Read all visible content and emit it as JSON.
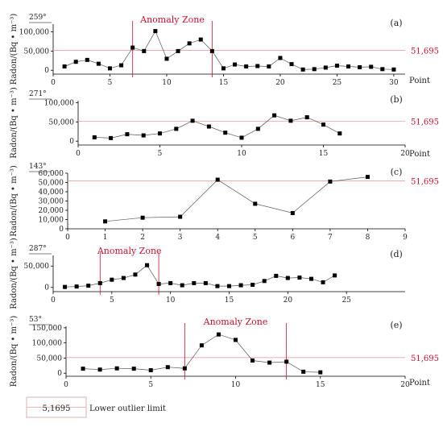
{
  "legend": {
    "value": "5,1695",
    "label": "Lower outlier limit"
  },
  "colors": {
    "threshold": "#e8a0a0",
    "zone": "#c8102e",
    "series": "#000000",
    "line": "#555555"
  },
  "chart_data": [
    {
      "type": "line",
      "panel": "(a)",
      "angle": "259°",
      "ylabel": "Radon/(Bq • m⁻³)",
      "xlabel": "Point",
      "xlim": [
        0,
        31
      ],
      "ylim": [
        -10000,
        120000
      ],
      "xticks": [
        0,
        5,
        10,
        15,
        20,
        25,
        30
      ],
      "yticks": [
        0,
        50000,
        100000
      ],
      "ytick_labels": [
        "0",
        "50,000",
        "100,000"
      ],
      "threshold": 51695,
      "threshold_label": "51,695",
      "anomaly_zone": {
        "label": "Anomaly Zone",
        "x0": 7,
        "x1": 14
      },
      "x": [
        1,
        2,
        3,
        4,
        5,
        6,
        7,
        8,
        9,
        10,
        11,
        12,
        13,
        14,
        15,
        16,
        17,
        18,
        19,
        20,
        21,
        22,
        23,
        24,
        25,
        26,
        27,
        28,
        29,
        30
      ],
      "values": [
        10000,
        22000,
        27000,
        17000,
        5000,
        13000,
        59000,
        50000,
        102000,
        30000,
        50000,
        70000,
        80000,
        50000,
        5000,
        15000,
        10000,
        11000,
        10000,
        32000,
        16000,
        2000,
        3000,
        7000,
        12000,
        10000,
        8000,
        9000,
        3000,
        2000
      ]
    },
    {
      "type": "line",
      "panel": "(b)",
      "angle": "271°",
      "ylabel": "Radon/(Bq • m⁻³)",
      "xlabel": "Point",
      "xlim": [
        0,
        20
      ],
      "ylim": [
        -10000,
        105000
      ],
      "xticks": [
        0,
        5,
        10,
        15,
        20
      ],
      "yticks": [
        0,
        50000,
        100000
      ],
      "ytick_labels": [
        "0",
        "50,000",
        "100,000"
      ],
      "threshold": 51695,
      "threshold_label": "51,695",
      "x": [
        1,
        2,
        3,
        4,
        5,
        6,
        7,
        8,
        9,
        10,
        11,
        12,
        13,
        14,
        15,
        16
      ],
      "values": [
        10000,
        8000,
        18000,
        15000,
        20000,
        32000,
        53000,
        38000,
        22000,
        9000,
        32000,
        67000,
        53000,
        62000,
        43000,
        20000
      ]
    },
    {
      "type": "line",
      "panel": "(c)",
      "angle": "143°",
      "ylabel": "Radon/(Bq • m⁻³)",
      "xlabel": "",
      "xlim": [
        0,
        9
      ],
      "ylim": [
        0,
        60000
      ],
      "xticks": [
        0,
        1,
        2,
        3,
        4,
        5,
        6,
        7,
        8,
        9
      ],
      "yticks": [
        0,
        10000,
        20000,
        30000,
        40000,
        50000,
        60000
      ],
      "ytick_labels": [
        "0",
        "10,000",
        "20,000",
        "30,000",
        "40,000",
        "50,000",
        "60,000"
      ],
      "threshold": 51695,
      "threshold_label": "51,695",
      "x": [
        1,
        2,
        3,
        4,
        5,
        6,
        7,
        8
      ],
      "values": [
        8000,
        12000,
        13000,
        53000,
        27000,
        17000,
        51000,
        56000
      ]
    },
    {
      "type": "line",
      "panel": "(d)",
      "angle": "287°",
      "ylabel": "Radon/(Bq • m⁻³)",
      "xlabel": "",
      "xlim": [
        0,
        30
      ],
      "ylim": [
        -10000,
        75000
      ],
      "xticks": [
        0,
        5,
        10,
        15,
        20,
        25
      ],
      "yticks": [
        0,
        50000
      ],
      "ytick_labels": [
        "0",
        "50,000"
      ],
      "anomaly_zone": {
        "label": "Anomaly Zone",
        "x0": 4,
        "x1": 9
      },
      "x": [
        1,
        2,
        3,
        4,
        5,
        6,
        7,
        8,
        9,
        10,
        11,
        12,
        13,
        14,
        15,
        16,
        17,
        18,
        19,
        20,
        21,
        22,
        23,
        24
      ],
      "values": [
        1000,
        2000,
        4000,
        10000,
        18000,
        22000,
        30000,
        52000,
        8000,
        10000,
        5000,
        10000,
        10000,
        3000,
        3000,
        5000,
        6000,
        15000,
        27000,
        22000,
        23000,
        20000,
        12000,
        28000
      ]
    },
    {
      "type": "line",
      "panel": "(e)",
      "angle": "53°",
      "ylabel": "Radon/(Bq • m⁻³)",
      "xlabel": "Point",
      "xlim": [
        0,
        20
      ],
      "ylim": [
        -10000,
        155000
      ],
      "xticks": [
        0,
        5,
        10,
        15,
        20
      ],
      "yticks": [
        0,
        50000,
        100000,
        150000
      ],
      "ytick_labels": [
        "0",
        "50,000",
        "100,000",
        "150,000"
      ],
      "threshold": 51695,
      "threshold_label": "51,695",
      "anomaly_zone": {
        "label": "Anomaly Zone",
        "x0": 7,
        "x1": 13
      },
      "x": [
        1,
        2,
        3,
        4,
        5,
        6,
        7,
        8,
        9,
        10,
        11,
        12,
        13,
        14,
        15
      ],
      "values": [
        15000,
        12000,
        16000,
        15000,
        10000,
        20000,
        16000,
        92000,
        128000,
        110000,
        42000,
        35000,
        38000,
        5000,
        3000
      ]
    }
  ]
}
